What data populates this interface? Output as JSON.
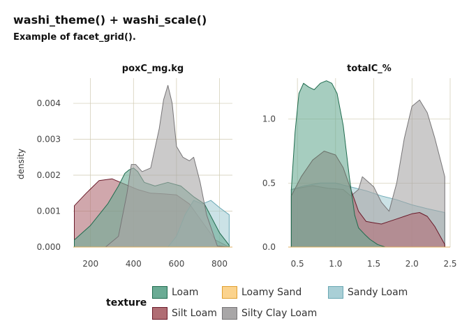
{
  "title": "washi_theme() + washi_scale()",
  "subtitle": "Example of facet_grid().",
  "chart_data": [
    {
      "type": "area",
      "panel": "poxC_mg.kg",
      "ylabel": "density",
      "xlim": [
        120,
        860
      ],
      "ylim": [
        0,
        0.0047
      ],
      "xticks": [
        200,
        400,
        600,
        800
      ],
      "yticks": [
        0.0,
        0.001,
        0.002,
        0.003,
        0.004
      ],
      "ytick_labels": [
        "0.000",
        "0.001",
        "0.002",
        "0.003",
        "0.004"
      ],
      "grid": true,
      "series": [
        {
          "name": "Silt Loam",
          "x": [
            125,
            180,
            240,
            300,
            360,
            420,
            480,
            540,
            600,
            660,
            720,
            780,
            845
          ],
          "y": [
            0.00115,
            0.0015,
            0.00185,
            0.0019,
            0.00175,
            0.0016,
            0.0015,
            0.00148,
            0.00145,
            0.0012,
            0.0007,
            0.0002,
            0.0
          ]
        },
        {
          "name": "Sandy Loam",
          "x": [
            560,
            600,
            640,
            680,
            720,
            760,
            800,
            845
          ],
          "y": [
            0.0,
            0.0003,
            0.0009,
            0.0013,
            0.0012,
            0.0013,
            0.0011,
            0.0009
          ]
        },
        {
          "name": "Loam",
          "x": [
            125,
            200,
            280,
            330,
            360,
            380,
            400,
            420,
            450,
            500,
            560,
            620,
            680,
            730,
            800,
            845
          ],
          "y": [
            0.0002,
            0.0006,
            0.0012,
            0.0017,
            0.00205,
            0.00215,
            0.0022,
            0.0021,
            0.0018,
            0.0017,
            0.0018,
            0.0017,
            0.0014,
            0.0012,
            0.0004,
            5e-05
          ]
        },
        {
          "name": "Silty Clay Loam",
          "x": [
            270,
            330,
            370,
            390,
            410,
            440,
            480,
            520,
            540,
            560,
            580,
            600,
            630,
            660,
            680,
            710,
            740,
            790,
            845
          ],
          "y": [
            0.0,
            0.0003,
            0.0015,
            0.0023,
            0.0023,
            0.0021,
            0.0022,
            0.0033,
            0.0041,
            0.0045,
            0.004,
            0.0028,
            0.0025,
            0.0024,
            0.0025,
            0.0018,
            0.0009,
            3e-05,
            0.0
          ]
        }
      ]
    },
    {
      "type": "area",
      "panel": "totalC_%",
      "xlim": [
        0.38,
        2.5
      ],
      "ylim": [
        0,
        1.32
      ],
      "xticks": [
        0.5,
        1.0,
        1.5,
        2.0,
        2.5
      ],
      "xtick_labels": [
        "0.5",
        "1.0",
        "1.5",
        "2.0",
        "2.5"
      ],
      "yticks": [
        0.0,
        0.5,
        1.0
      ],
      "ytick_labels": [
        "0.0",
        "0.5",
        "1.0"
      ],
      "grid": true,
      "series": [
        {
          "name": "Sandy Loam",
          "x": [
            0.42,
            0.6,
            0.8,
            1.0,
            1.2,
            1.4,
            1.6,
            1.8,
            2.0,
            2.2,
            2.43
          ],
          "y": [
            0.45,
            0.48,
            0.5,
            0.5,
            0.47,
            0.44,
            0.4,
            0.37,
            0.33,
            0.3,
            0.27
          ]
        },
        {
          "name": "Silty Clay Loam",
          "x": [
            0.42,
            0.7,
            0.9,
            1.1,
            1.2,
            1.3,
            1.35,
            1.5,
            1.6,
            1.7,
            1.8,
            1.9,
            2.0,
            2.1,
            2.2,
            2.3,
            2.43
          ],
          "y": [
            0.45,
            0.48,
            0.46,
            0.45,
            0.4,
            0.45,
            0.55,
            0.47,
            0.35,
            0.28,
            0.5,
            0.85,
            1.1,
            1.15,
            1.05,
            0.85,
            0.55
          ]
        },
        {
          "name": "Silt Loam",
          "x": [
            0.42,
            0.55,
            0.7,
            0.85,
            1.0,
            1.1,
            1.2,
            1.3,
            1.4,
            1.5,
            1.6,
            1.7,
            1.8,
            1.9,
            2.0,
            2.1,
            2.2,
            2.3,
            2.43
          ],
          "y": [
            0.4,
            0.55,
            0.68,
            0.75,
            0.72,
            0.62,
            0.45,
            0.28,
            0.2,
            0.19,
            0.18,
            0.2,
            0.22,
            0.24,
            0.26,
            0.27,
            0.24,
            0.16,
            0.02
          ]
        },
        {
          "name": "Loam",
          "x": [
            0.42,
            0.47,
            0.52,
            0.58,
            0.65,
            0.72,
            0.8,
            0.88,
            0.95,
            1.02,
            1.1,
            1.18,
            1.25,
            1.3,
            1.38,
            1.45,
            1.55,
            1.65
          ],
          "y": [
            0.45,
            0.9,
            1.2,
            1.28,
            1.25,
            1.23,
            1.28,
            1.3,
            1.28,
            1.2,
            0.95,
            0.55,
            0.25,
            0.15,
            0.1,
            0.06,
            0.02,
            0.0
          ]
        }
      ]
    }
  ],
  "legend": {
    "title": "texture",
    "items": [
      {
        "label": "Loam",
        "fill": "#6aab94",
        "stroke": "#1f6b4e"
      },
      {
        "label": "Loamy Sand",
        "fill": "#fbd38d",
        "stroke": "#e0a030"
      },
      {
        "label": "Sandy Loam",
        "fill": "#a9cfd6",
        "stroke": "#6aa8b4"
      },
      {
        "label": "Silt Loam",
        "fill": "#b06d74",
        "stroke": "#6a1b2a"
      },
      {
        "label": "Silty Clay Loam",
        "fill": "#a8a6a7",
        "stroke": "#777577"
      }
    ]
  },
  "colors": {
    "Loam": {
      "fill": "#6aab94",
      "stroke": "#1f6b4e"
    },
    "Sandy Loam": {
      "fill": "#a9cfd6",
      "stroke": "#6aa8b4"
    },
    "Silt Loam": {
      "fill": "#b06d74",
      "stroke": "#6a1b2a"
    },
    "Silty Clay Loam": {
      "fill": "#a8a6a7",
      "stroke": "#777577"
    },
    "grid": "#cfc9b0",
    "zero_line": "#e0b060"
  }
}
